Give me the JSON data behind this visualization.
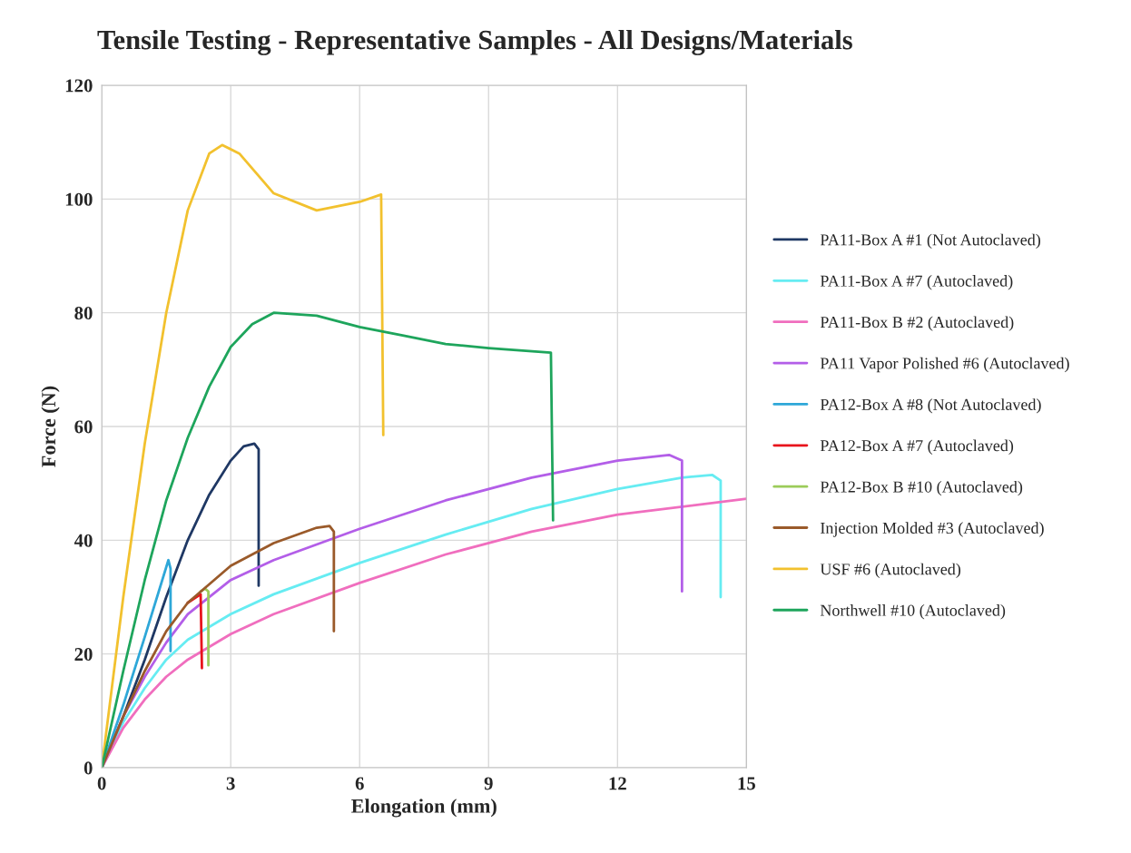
{
  "chart_data": {
    "type": "line",
    "title": "Tensile Testing - Representative Samples - All Designs/Materials",
    "xlabel": "Elongation (mm)",
    "ylabel": "Force (N)",
    "xlim": [
      0,
      15
    ],
    "xticks": [
      0,
      3,
      6,
      9,
      12,
      15
    ],
    "ylim": [
      0,
      120
    ],
    "yticks": [
      0,
      20,
      40,
      60,
      80,
      100,
      120
    ],
    "grid": true,
    "legend": "right",
    "marker": "none",
    "line_style": "solid",
    "series": [
      {
        "name": "PA11-Box A #1 (Not Autoclaved)",
        "color": "#1f3864",
        "x": [
          0,
          0.5,
          1,
          1.5,
          2,
          2.5,
          3,
          3.3,
          3.55,
          3.65,
          3.65
        ],
        "values": [
          0,
          9,
          19,
          30,
          40,
          48,
          54,
          56.5,
          57,
          56,
          32
        ]
      },
      {
        "name": "PA11-Box A #7 (Autoclaved)",
        "color": "#66ecf2",
        "x": [
          0,
          0.5,
          1,
          1.5,
          2,
          3,
          4,
          6,
          8,
          10,
          12,
          13.5,
          14.2,
          14.4,
          14.4
        ],
        "values": [
          0,
          8,
          14,
          19,
          22.5,
          27,
          30.5,
          36,
          41,
          45.5,
          49,
          51,
          51.5,
          50.5,
          30
        ]
      },
      {
        "name": "PA11-Box B #2 (Autoclaved)",
        "color": "#f06ebe",
        "x": [
          0,
          0.5,
          1,
          1.5,
          2,
          3,
          4,
          6,
          8,
          10,
          12,
          15
        ],
        "values": [
          0,
          7,
          12,
          16,
          19,
          23.5,
          27,
          32.5,
          37.5,
          41.5,
          44.5,
          47.3
        ]
      },
      {
        "name": "PA11 Vapor Polished #6 (Autoclaved)",
        "color": "#b35ee8",
        "x": [
          0,
          0.5,
          1,
          1.5,
          2,
          3,
          4,
          6,
          8,
          10,
          12,
          13.2,
          13.5,
          13.5
        ],
        "values": [
          0,
          9,
          16,
          22,
          27,
          33,
          36.5,
          42,
          47,
          51,
          54,
          55,
          54,
          31
        ]
      },
      {
        "name": "PA12-Box A #8 (Not Autoclaved)",
        "color": "#2ea7d8",
        "x": [
          0,
          0.5,
          1,
          1.55,
          1.6,
          1.6
        ],
        "values": [
          0,
          11,
          23,
          36.5,
          35,
          20.5
        ]
      },
      {
        "name": "PA12-Box A #7 (Autoclaved)",
        "color": "#e8141c",
        "x": [
          2,
          2.3,
          2.33
        ],
        "values": [
          29,
          30.5,
          17.5
        ]
      },
      {
        "name": "PA12-Box B #10 (Autoclaved)",
        "color": "#9ccc5a",
        "x": [
          2.3,
          2.4,
          2.48,
          2.48
        ],
        "values": [
          31,
          31.5,
          31,
          18
        ]
      },
      {
        "name": "Injection Molded #3 (Autoclaved)",
        "color": "#9a5a2a",
        "x": [
          0,
          0.5,
          1,
          1.5,
          2,
          3,
          4,
          5,
          5.3,
          5.4,
          5.4
        ],
        "values": [
          0,
          9,
          17,
          24,
          29,
          35.5,
          39.5,
          42.2,
          42.5,
          41.5,
          24
        ]
      },
      {
        "name": "USF #6 (Autoclaved)",
        "color": "#f2c12e",
        "x": [
          0,
          0.5,
          1,
          1.5,
          2,
          2.5,
          2.8,
          3.2,
          4,
          5,
          6,
          6.5,
          6.55
        ],
        "values": [
          0,
          30,
          57,
          80,
          98,
          108,
          109.5,
          108,
          101,
          98,
          99.5,
          100.8,
          58.5
        ]
      },
      {
        "name": "Northwell #10 (Autoclaved)",
        "color": "#1ea55c",
        "x": [
          0,
          0.5,
          1,
          1.5,
          2,
          2.5,
          3,
          3.5,
          4,
          5,
          6,
          7,
          8,
          9,
          10.45,
          10.5
        ],
        "values": [
          0,
          17,
          33,
          47,
          58,
          67,
          74,
          78,
          80,
          79.5,
          77.5,
          76,
          74.5,
          73.8,
          73,
          43.5
        ]
      }
    ]
  }
}
